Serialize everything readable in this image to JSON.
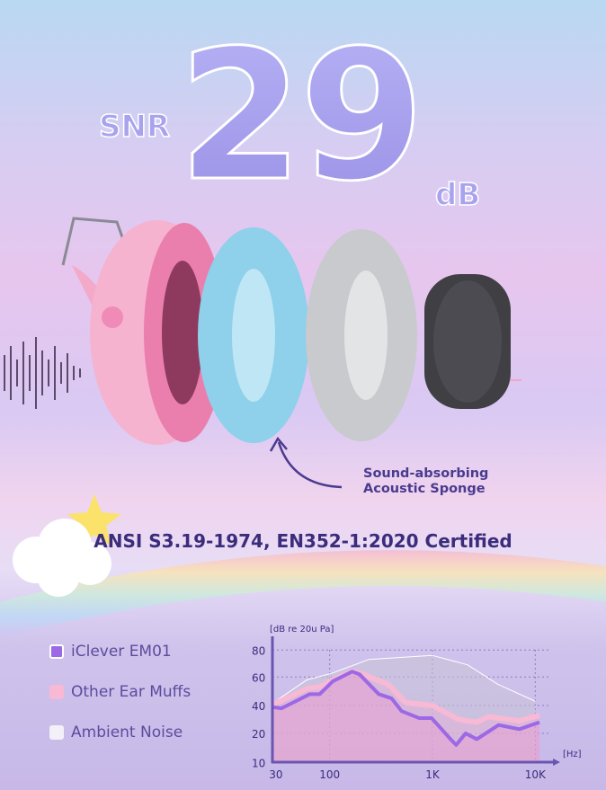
{
  "headline": {
    "prefix": "SNR",
    "value": "29",
    "unit": "dB"
  },
  "callout": {
    "line1": "Sound-absorbing",
    "line2": "Acoustic Sponge"
  },
  "certification": "ANSI S3.19-1974, EN352-1:2020 Certified",
  "colors": {
    "em01": "#9c68e6",
    "other": "#f7b9d4",
    "ambient": "#f3f0f8",
    "text": "#3b2c7c"
  },
  "legend": [
    {
      "label": "iClever EM01",
      "color": "#9c68e6"
    },
    {
      "label": "Other Ear Muffs",
      "color": "#f7b9d4"
    },
    {
      "label": "Ambient Noise",
      "color": "#f3f0f8"
    }
  ],
  "chart_data": {
    "type": "line",
    "ylabel": "[dB re 20u Pa]",
    "xlabel": "[Hz]",
    "x_scale": "log",
    "grid": true,
    "xticks": [
      {
        "v": 30,
        "label": "30"
      },
      {
        "v": 100,
        "label": "100"
      },
      {
        "v": 1000,
        "label": "1K"
      },
      {
        "v": 10000,
        "label": "10K"
      }
    ],
    "yticks": [
      80,
      60,
      40,
      20,
      10
    ],
    "series": [
      {
        "name": "Ambient Noise",
        "points": [
          [
            27,
            41
          ],
          [
            60,
            58
          ],
          [
            107,
            63
          ],
          [
            240,
            73
          ],
          [
            1000,
            76
          ],
          [
            2200,
            69
          ],
          [
            4300,
            55
          ],
          [
            10000,
            43
          ]
        ]
      },
      {
        "name": "Other Ear Muffs",
        "points": [
          [
            27,
            40
          ],
          [
            60,
            52
          ],
          [
            80,
            53
          ],
          [
            107,
            58
          ],
          [
            165,
            64
          ],
          [
            195,
            63
          ],
          [
            370,
            55
          ],
          [
            550,
            42
          ],
          [
            1000,
            40
          ],
          [
            1800,
            30
          ],
          [
            2700,
            28
          ],
          [
            3500,
            32
          ],
          [
            7000,
            29
          ],
          [
            11000,
            33
          ]
        ]
      },
      {
        "name": "iClever EM01",
        "points": [
          [
            27,
            39
          ],
          [
            34,
            38
          ],
          [
            60,
            47
          ],
          [
            64,
            48
          ],
          [
            80,
            48
          ],
          [
            107,
            57
          ],
          [
            165,
            64
          ],
          [
            195,
            62
          ],
          [
            300,
            48
          ],
          [
            400,
            45
          ],
          [
            500,
            36
          ],
          [
            740,
            31
          ],
          [
            980,
            31
          ],
          [
            1500,
            18
          ],
          [
            1700,
            16
          ],
          [
            2100,
            20
          ],
          [
            2700,
            18
          ],
          [
            4400,
            26
          ],
          [
            7000,
            23
          ],
          [
            11000,
            28
          ]
        ]
      }
    ]
  }
}
